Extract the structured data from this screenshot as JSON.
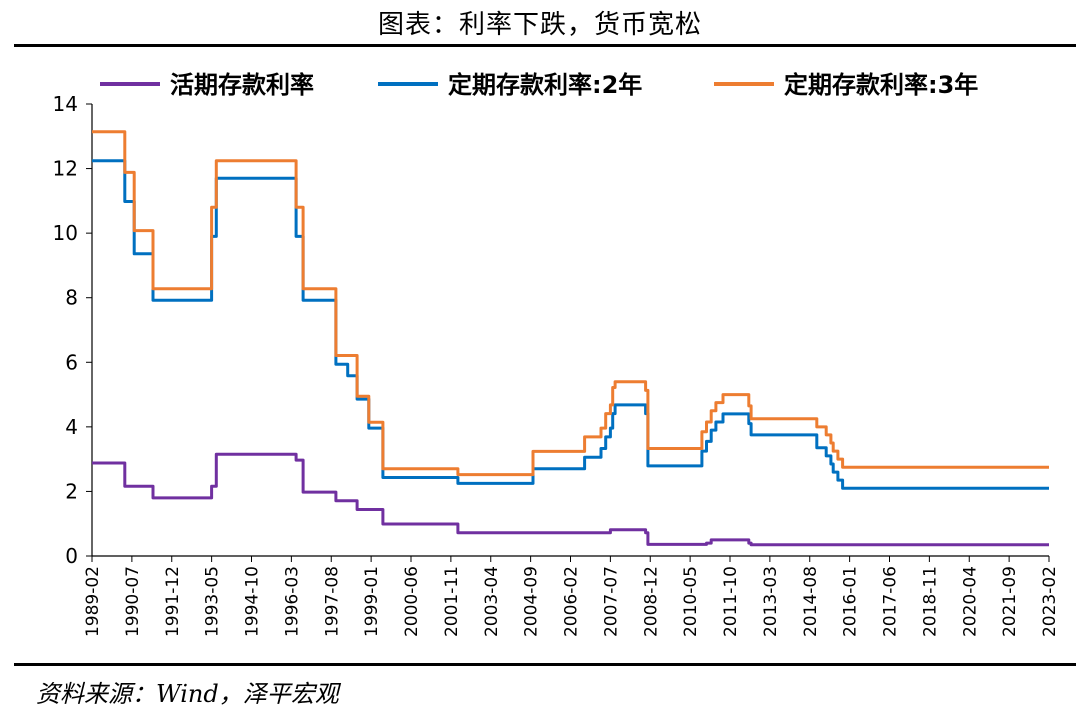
{
  "title": "图表：利率下跌，货币宽松",
  "source": "资料来源：Wind，泽平宏观",
  "chart_data": {
    "type": "line",
    "title": "图表：利率下跌，货币宽松",
    "xlabel": "",
    "ylabel": "",
    "ylim": [
      0,
      14
    ],
    "yticks": [
      0,
      2,
      4,
      6,
      8,
      10,
      12,
      14
    ],
    "xlim": [
      "1989-02",
      "2023-02"
    ],
    "x_ticks": [
      "1989-02",
      "1990-07",
      "1991-12",
      "1993-05",
      "1994-10",
      "1996-03",
      "1997-08",
      "1999-01",
      "2000-06",
      "2001-11",
      "2003-04",
      "2004-09",
      "2006-02",
      "2007-07",
      "2008-12",
      "2010-05",
      "2011-10",
      "2013-03",
      "2014-08",
      "2016-01",
      "2017-06",
      "2018-11",
      "2020-04",
      "2021-09",
      "2023-02"
    ],
    "legend_position": "top",
    "series": [
      {
        "name": "活期存款利率",
        "color": "#7030a0",
        "points": [
          [
            "1989-02",
            2.88
          ],
          [
            "1990-04",
            2.88
          ],
          [
            "1990-04",
            2.16
          ],
          [
            "1991-04",
            2.16
          ],
          [
            "1991-04",
            1.8
          ],
          [
            "1993-05",
            1.8
          ],
          [
            "1993-05",
            2.16
          ],
          [
            "1993-07",
            2.16
          ],
          [
            "1993-07",
            3.15
          ],
          [
            "1996-05",
            3.15
          ],
          [
            "1996-05",
            2.97
          ],
          [
            "1996-08",
            2.97
          ],
          [
            "1996-08",
            1.98
          ],
          [
            "1997-10",
            1.98
          ],
          [
            "1997-10",
            1.71
          ],
          [
            "1998-07",
            1.71
          ],
          [
            "1998-07",
            1.44
          ],
          [
            "1999-06",
            1.44
          ],
          [
            "1999-06",
            0.99
          ],
          [
            "2002-02",
            0.99
          ],
          [
            "2002-02",
            0.72
          ],
          [
            "2007-07",
            0.72
          ],
          [
            "2007-07",
            0.81
          ],
          [
            "2008-10",
            0.81
          ],
          [
            "2008-10",
            0.72
          ],
          [
            "2008-11",
            0.72
          ],
          [
            "2008-11",
            0.36
          ],
          [
            "2010-10",
            0.36
          ],
          [
            "2010-12",
            0.36
          ],
          [
            "2010-12",
            0.4
          ],
          [
            "2011-02",
            0.4
          ],
          [
            "2011-02",
            0.5
          ],
          [
            "2012-06",
            0.5
          ],
          [
            "2012-06",
            0.4
          ],
          [
            "2012-07",
            0.4
          ],
          [
            "2012-07",
            0.35
          ],
          [
            "2023-02",
            0.35
          ]
        ]
      },
      {
        "name": "定期存款利率:2年",
        "color": "#0070c0",
        "points": [
          [
            "1989-02",
            12.24
          ],
          [
            "1990-04",
            12.24
          ],
          [
            "1990-04",
            10.98
          ],
          [
            "1990-08",
            10.98
          ],
          [
            "1990-08",
            9.36
          ],
          [
            "1991-04",
            9.36
          ],
          [
            "1991-04",
            7.92
          ],
          [
            "1993-05",
            7.92
          ],
          [
            "1993-05",
            9.9
          ],
          [
            "1993-07",
            9.9
          ],
          [
            "1993-07",
            11.7
          ],
          [
            "1996-05",
            11.7
          ],
          [
            "1996-05",
            9.9
          ],
          [
            "1996-08",
            9.9
          ],
          [
            "1996-08",
            7.92
          ],
          [
            "1997-10",
            7.92
          ],
          [
            "1997-10",
            5.94
          ],
          [
            "1998-03",
            5.94
          ],
          [
            "1998-03",
            5.58
          ],
          [
            "1998-07",
            5.58
          ],
          [
            "1998-07",
            4.86
          ],
          [
            "1998-12",
            4.86
          ],
          [
            "1998-12",
            3.96
          ],
          [
            "1999-06",
            3.96
          ],
          [
            "1999-06",
            2.43
          ],
          [
            "2002-02",
            2.43
          ],
          [
            "2002-02",
            2.25
          ],
          [
            "2004-10",
            2.25
          ],
          [
            "2004-10",
            2.7
          ],
          [
            "2006-08",
            2.7
          ],
          [
            "2006-08",
            3.06
          ],
          [
            "2007-03",
            3.06
          ],
          [
            "2007-03",
            3.33
          ],
          [
            "2007-05",
            3.33
          ],
          [
            "2007-05",
            3.69
          ],
          [
            "2007-07",
            3.69
          ],
          [
            "2007-07",
            3.96
          ],
          [
            "2007-08",
            3.96
          ],
          [
            "2007-08",
            4.41
          ],
          [
            "2007-09",
            4.41
          ],
          [
            "2007-09",
            4.68
          ],
          [
            "2008-10",
            4.68
          ],
          [
            "2008-10",
            4.41
          ],
          [
            "2008-11",
            4.41
          ],
          [
            "2008-11",
            2.79
          ],
          [
            "2010-10",
            2.79
          ],
          [
            "2010-10",
            3.25
          ],
          [
            "2010-12",
            3.25
          ],
          [
            "2010-12",
            3.55
          ],
          [
            "2011-02",
            3.55
          ],
          [
            "2011-02",
            3.9
          ],
          [
            "2011-04",
            3.9
          ],
          [
            "2011-04",
            4.15
          ],
          [
            "2011-07",
            4.15
          ],
          [
            "2011-07",
            4.4
          ],
          [
            "2012-06",
            4.4
          ],
          [
            "2012-06",
            4.1
          ],
          [
            "2012-07",
            4.1
          ],
          [
            "2012-07",
            3.75
          ],
          [
            "2014-11",
            3.75
          ],
          [
            "2014-11",
            3.35
          ],
          [
            "2015-03",
            3.35
          ],
          [
            "2015-03",
            3.1
          ],
          [
            "2015-05",
            3.1
          ],
          [
            "2015-05",
            2.85
          ],
          [
            "2015-06",
            2.85
          ],
          [
            "2015-06",
            2.6
          ],
          [
            "2015-08",
            2.6
          ],
          [
            "2015-08",
            2.35
          ],
          [
            "2015-10",
            2.35
          ],
          [
            "2015-10",
            2.1
          ],
          [
            "2023-02",
            2.1
          ]
        ]
      },
      {
        "name": "定期存款利率:3年",
        "color": "#ed7d31",
        "points": [
          [
            "1989-02",
            13.14
          ],
          [
            "1990-04",
            13.14
          ],
          [
            "1990-04",
            11.88
          ],
          [
            "1990-08",
            11.88
          ],
          [
            "1990-08",
            10.08
          ],
          [
            "1991-04",
            10.08
          ],
          [
            "1991-04",
            8.28
          ],
          [
            "1993-05",
            8.28
          ],
          [
            "1993-05",
            10.8
          ],
          [
            "1993-07",
            10.8
          ],
          [
            "1993-07",
            12.24
          ],
          [
            "1996-05",
            12.24
          ],
          [
            "1996-05",
            10.8
          ],
          [
            "1996-08",
            10.8
          ],
          [
            "1996-08",
            8.28
          ],
          [
            "1997-10",
            8.28
          ],
          [
            "1997-10",
            6.21
          ],
          [
            "1998-03",
            6.21
          ],
          [
            "1998-03",
            6.21
          ],
          [
            "1998-07",
            6.21
          ],
          [
            "1998-07",
            4.95
          ],
          [
            "1998-12",
            4.95
          ],
          [
            "1998-12",
            4.14
          ],
          [
            "1999-06",
            4.14
          ],
          [
            "1999-06",
            2.7
          ],
          [
            "2002-02",
            2.7
          ],
          [
            "2002-02",
            2.52
          ],
          [
            "2004-10",
            2.52
          ],
          [
            "2004-10",
            3.24
          ],
          [
            "2006-08",
            3.24
          ],
          [
            "2006-08",
            3.69
          ],
          [
            "2007-03",
            3.69
          ],
          [
            "2007-03",
            3.96
          ],
          [
            "2007-05",
            3.96
          ],
          [
            "2007-05",
            4.41
          ],
          [
            "2007-07",
            4.41
          ],
          [
            "2007-07",
            4.68
          ],
          [
            "2007-08",
            4.68
          ],
          [
            "2007-08",
            5.22
          ],
          [
            "2007-09",
            5.22
          ],
          [
            "2007-09",
            5.4
          ],
          [
            "2008-10",
            5.4
          ],
          [
            "2008-10",
            5.13
          ],
          [
            "2008-11",
            5.13
          ],
          [
            "2008-11",
            3.33
          ],
          [
            "2010-10",
            3.33
          ],
          [
            "2010-10",
            3.85
          ],
          [
            "2010-12",
            3.85
          ],
          [
            "2010-12",
            4.15
          ],
          [
            "2011-02",
            4.15
          ],
          [
            "2011-02",
            4.5
          ],
          [
            "2011-04",
            4.5
          ],
          [
            "2011-04",
            4.75
          ],
          [
            "2011-07",
            4.75
          ],
          [
            "2011-07",
            5.0
          ],
          [
            "2012-06",
            5.0
          ],
          [
            "2012-06",
            4.65
          ],
          [
            "2012-07",
            4.65
          ],
          [
            "2012-07",
            4.25
          ],
          [
            "2014-11",
            4.25
          ],
          [
            "2014-11",
            4.0
          ],
          [
            "2015-03",
            4.0
          ],
          [
            "2015-03",
            3.75
          ],
          [
            "2015-05",
            3.75
          ],
          [
            "2015-05",
            3.5
          ],
          [
            "2015-06",
            3.5
          ],
          [
            "2015-06",
            3.25
          ],
          [
            "2015-08",
            3.25
          ],
          [
            "2015-08",
            3.0
          ],
          [
            "2015-10",
            3.0
          ],
          [
            "2015-10",
            2.75
          ],
          [
            "2023-02",
            2.75
          ]
        ]
      }
    ]
  }
}
